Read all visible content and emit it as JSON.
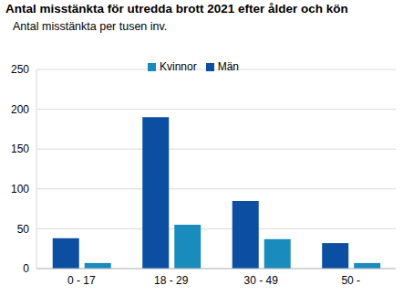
{
  "chart_data": {
    "type": "bar",
    "title": "Antal misstänkta för utredda brott 2021 efter ålder och kön",
    "subtitle": "Antal misstänkta per tusen inv.",
    "categories": [
      "0 - 17",
      "18 - 29",
      "30 - 49",
      "50 -"
    ],
    "series": [
      {
        "name": "Män",
        "color": "#0b4ea2",
        "values": [
          38,
          190,
          85,
          32
        ]
      },
      {
        "name": "Kvinnor",
        "color": "#1a8bbd",
        "values": [
          7,
          55,
          37,
          7
        ]
      }
    ],
    "ylim": [
      0,
      250
    ],
    "yticks": [
      0,
      50,
      100,
      150,
      200,
      250
    ],
    "grid": true,
    "legend": "top"
  }
}
